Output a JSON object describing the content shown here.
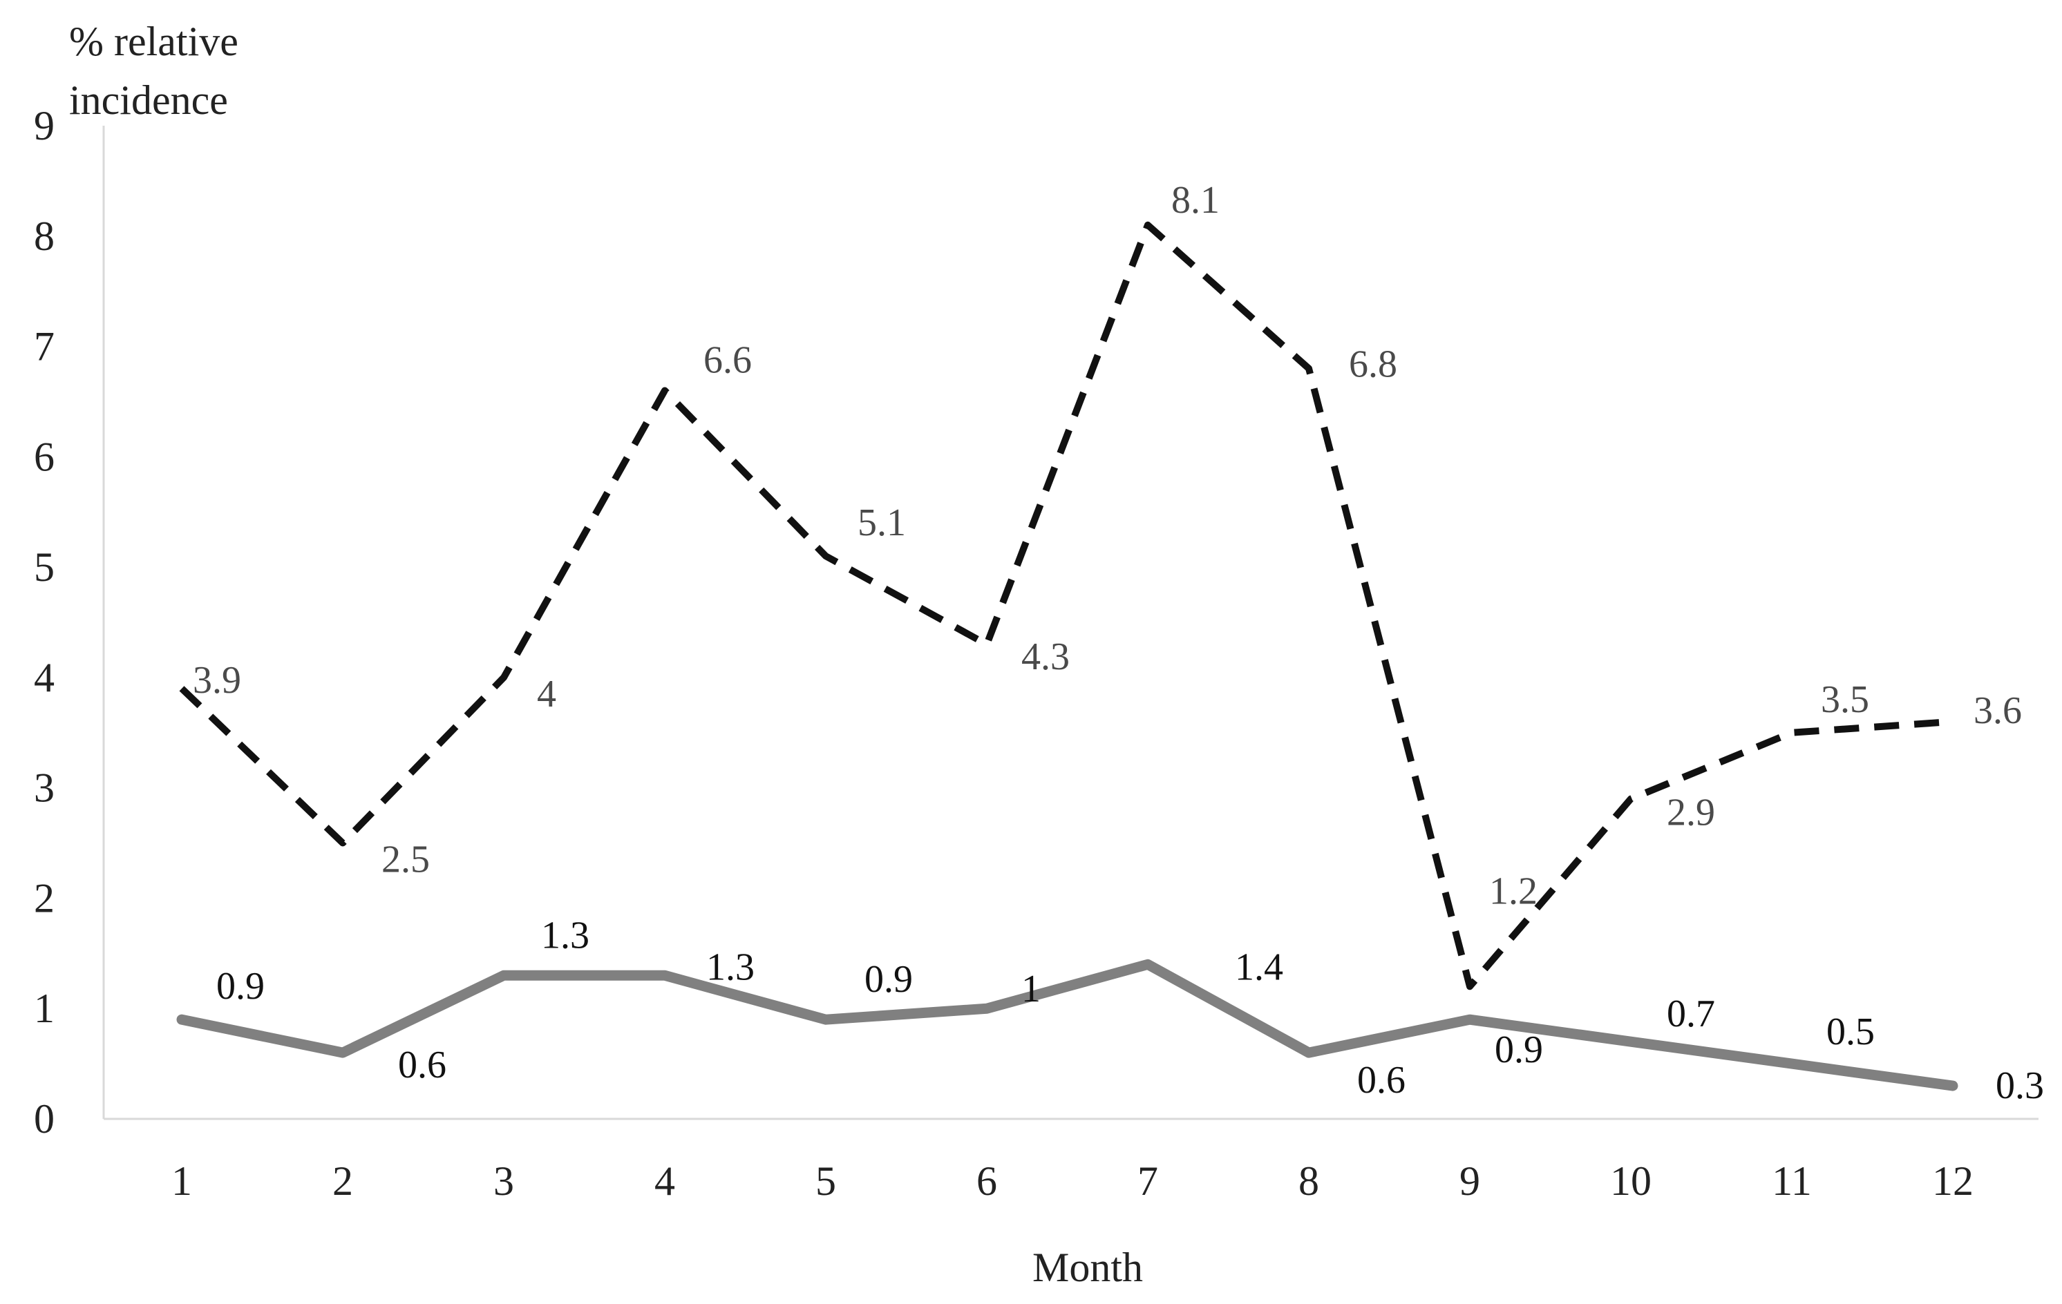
{
  "chart_data": {
    "type": "line",
    "xlabel": "Month",
    "ylabel": [
      "% relative",
      "incidence"
    ],
    "ylim": [
      0,
      9
    ],
    "yticks": [
      0,
      1,
      2,
      3,
      4,
      5,
      6,
      7,
      8,
      9
    ],
    "categories": [
      "1",
      "2",
      "3",
      "4",
      "5",
      "6",
      "7",
      "8",
      "9",
      "10",
      "11",
      "12"
    ],
    "grid": false,
    "legend": "none",
    "series": [
      {
        "style": "dashed",
        "color": "#111111",
        "values": [
          3.9,
          2.5,
          4,
          6.6,
          5.1,
          4.3,
          8.1,
          6.8,
          1.2,
          2.9,
          3.5,
          3.6
        ],
        "labels": [
          "3.9",
          "2.5",
          "4",
          "6.6",
          "5.1",
          "4.3",
          "8.1",
          "6.8",
          "1.2",
          "2.9",
          "3.5",
          "3.6"
        ]
      },
      {
        "style": "solid",
        "color": "#808080",
        "values": [
          0.9,
          0.6,
          1.3,
          1.3,
          0.9,
          1,
          1.4,
          0.6,
          0.9,
          0.7,
          0.5,
          0.3
        ],
        "labels": [
          "0.9",
          "0.6",
          "1.3",
          "1.3",
          "0.9",
          "1",
          "1.4",
          "0.6",
          "0.9",
          "0.7",
          "0.5",
          "0.3"
        ]
      }
    ]
  }
}
